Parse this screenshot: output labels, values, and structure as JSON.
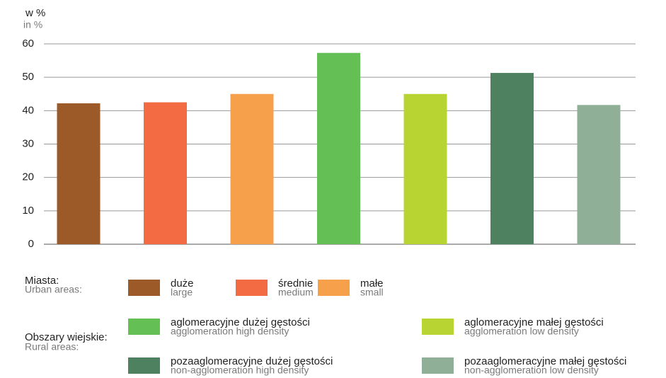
{
  "chart_data": {
    "type": "bar",
    "y_label": "w %",
    "y_label_en": "in %",
    "ylim": [
      0,
      60
    ],
    "yticks": [
      0,
      10,
      20,
      30,
      40,
      50,
      60
    ],
    "grid": true,
    "groups": [
      {
        "label": "Miasta:",
        "label_en": "Urban areas:",
        "series": [
          {
            "name": "duże",
            "name_en": "large",
            "color": "#9c5a28",
            "values": [
              42.2
            ]
          },
          {
            "name": "średnie",
            "name_en": "medium",
            "color": "#f26b43",
            "values": [
              42.5
            ]
          },
          {
            "name": "małe",
            "name_en": "small",
            "color": "#f7a04b",
            "values": [
              45.0
            ]
          }
        ]
      },
      {
        "label": "Obszary wiejskie:",
        "label_en": "Rural areas:",
        "series": [
          {
            "name": "aglomeracyjne dużej gęstości",
            "name_en": "agglomeration high density",
            "color": "#64bf55",
            "values": [
              57.3
            ]
          },
          {
            "name": "aglomeracyjne małej gęstości",
            "name_en": "agglomeration low density",
            "color": "#b8d433",
            "values": [
              45.0
            ]
          },
          {
            "name": "pozaaglomeracyjne dużej gęstości",
            "name_en": "non-agglomeration high density",
            "color": "#4e8160",
            "values": [
              51.3
            ]
          },
          {
            "name": "pozaaglomeracyjne małej gęstości",
            "name_en": "non-agglomeration low density",
            "color": "#8fb096",
            "values": [
              41.7
            ]
          }
        ]
      }
    ]
  }
}
